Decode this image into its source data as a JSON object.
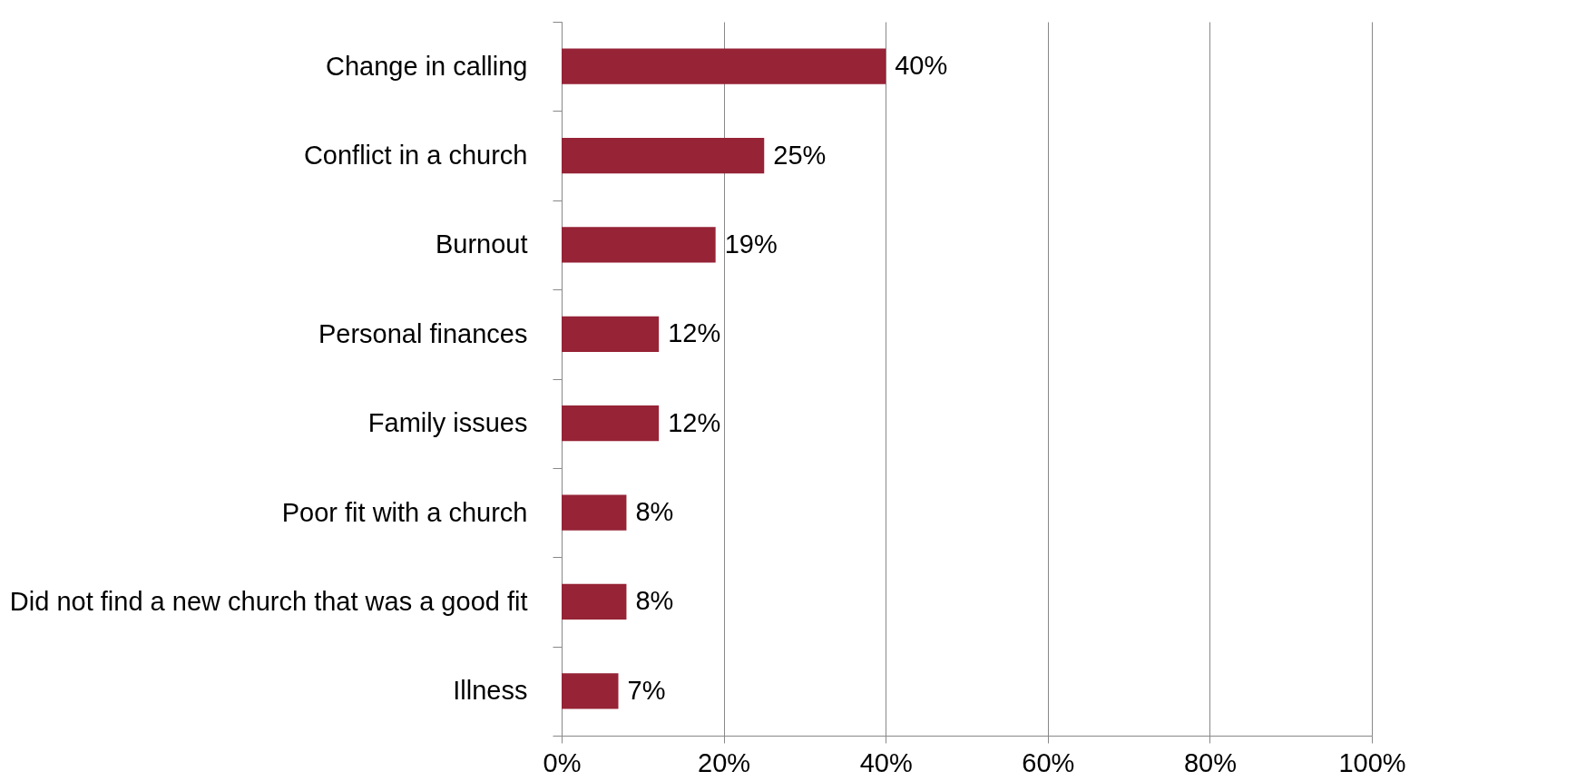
{
  "chart_data": {
    "type": "bar",
    "orientation": "horizontal",
    "categories": [
      "Change in calling",
      "Conflict in a church",
      "Burnout",
      "Personal finances",
      "Family issues",
      "Poor fit with a church",
      "Did not find a new church that was a good fit",
      "Illness"
    ],
    "values": [
      40,
      25,
      19,
      12,
      12,
      8,
      8,
      7
    ],
    "value_labels": [
      "40%",
      "25%",
      "19%",
      "12%",
      "12%",
      "8%",
      "8%",
      "7%"
    ],
    "color": "#962336",
    "xlim": [
      0,
      100
    ],
    "xticks": [
      {
        "value": 0,
        "label": "0%"
      },
      {
        "value": 20,
        "label": "20%"
      },
      {
        "value": 40,
        "label": "40%"
      },
      {
        "value": 60,
        "label": "60%"
      },
      {
        "value": 80,
        "label": "80%"
      },
      {
        "value": 100,
        "label": "100%"
      }
    ],
    "grid": "x"
  }
}
